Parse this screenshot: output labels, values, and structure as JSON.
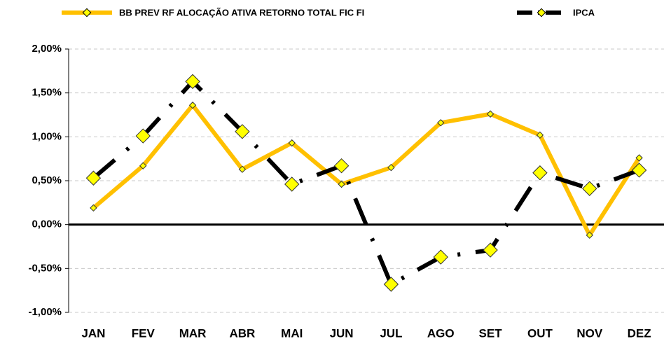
{
  "chart_data": {
    "type": "line",
    "categories": [
      "JAN",
      "FEV",
      "MAR",
      "ABR",
      "MAI",
      "JUN",
      "JUL",
      "AGO",
      "SET",
      "OUT",
      "NOV",
      "DEZ"
    ],
    "series": [
      {
        "name": "BB PREV RF ALOCAÇÃO ATIVA RETORNO TOTAL FIC FI",
        "color": "#FFC000",
        "marker_color": "#FFFF00",
        "dashed": false,
        "values": [
          0.19,
          0.67,
          1.36,
          0.63,
          0.93,
          0.46,
          0.65,
          1.16,
          1.26,
          1.02,
          -0.12,
          0.76
        ]
      },
      {
        "name": "IPCA",
        "color": "#000000",
        "marker_color": "#FFFF00",
        "dashed": true,
        "values": [
          0.53,
          1.01,
          1.63,
          1.06,
          0.46,
          0.67,
          -0.68,
          -0.37,
          -0.29,
          0.59,
          0.41,
          0.62
        ]
      }
    ],
    "ylim": [
      -1,
      2
    ],
    "yticks": [
      {
        "value": -1,
        "label": "-1,00%"
      },
      {
        "value": -0.5,
        "label": "-0,50%"
      },
      {
        "value": 0,
        "label": "0,00%"
      },
      {
        "value": 0.5,
        "label": "0,50%"
      },
      {
        "value": 1,
        "label": "1,00%"
      },
      {
        "value": 1.5,
        "label": "1,50%"
      },
      {
        "value": 2,
        "label": "2,00%"
      }
    ],
    "grid": true
  }
}
